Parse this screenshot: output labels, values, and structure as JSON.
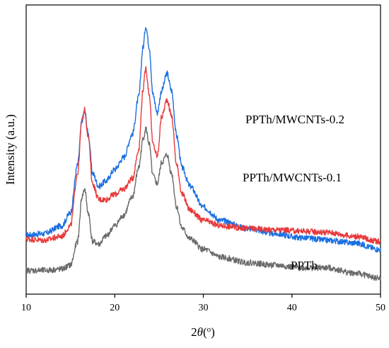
{
  "chart_data": {
    "type": "line",
    "title": "",
    "xlabel_prefix": "2",
    "xlabel_theta": "θ",
    "xlabel_open": "(",
    "xlabel_degree": "o",
    "xlabel_close": ")",
    "ylabel": "Intensity (a.u.)",
    "xlim": [
      10,
      50
    ],
    "xticks": [
      10,
      20,
      30,
      40,
      50
    ],
    "y_ticks_shown": false,
    "grid": false,
    "legend": "inline labels beside curves",
    "series": [
      {
        "name": "PPTh/MWCNTs-0.2",
        "color": "#1a6fe0",
        "x": [
          10,
          12,
          14,
          15,
          15.8,
          16.3,
          16.6,
          17.0,
          17.5,
          18.2,
          19,
          20,
          21,
          22,
          22.7,
          23.2,
          23.5,
          23.9,
          24.3,
          24.8,
          25.3,
          25.9,
          26.4,
          27,
          27.6,
          28.5,
          30,
          32,
          35,
          38,
          41,
          44,
          47,
          50
        ],
        "y": [
          0.45,
          0.46,
          0.52,
          0.62,
          0.98,
          1.32,
          1.4,
          1.22,
          0.92,
          0.82,
          0.86,
          0.95,
          1.04,
          1.22,
          1.5,
          1.88,
          2.04,
          1.88,
          1.52,
          1.38,
          1.55,
          1.68,
          1.55,
          1.2,
          0.96,
          0.82,
          0.66,
          0.56,
          0.5,
          0.46,
          0.43,
          0.41,
          0.39,
          0.34
        ]
      },
      {
        "name": "PPTh/MWCNTs-0.1",
        "color": "#e8393a",
        "x": [
          10,
          12,
          14,
          15,
          15.8,
          16.3,
          16.6,
          17.0,
          17.5,
          18.2,
          19,
          20,
          21,
          22,
          22.7,
          23.2,
          23.5,
          23.9,
          24.3,
          24.8,
          25.3,
          25.9,
          26.4,
          27,
          27.6,
          28.5,
          30,
          32,
          35,
          38,
          41,
          44,
          47,
          50
        ],
        "y": [
          0.42,
          0.41,
          0.44,
          0.52,
          0.92,
          1.32,
          1.4,
          1.2,
          0.84,
          0.72,
          0.72,
          0.76,
          0.8,
          0.88,
          1.1,
          1.56,
          1.72,
          1.52,
          1.14,
          1.05,
          1.35,
          1.48,
          1.36,
          0.98,
          0.76,
          0.64,
          0.56,
          0.52,
          0.5,
          0.49,
          0.48,
          0.47,
          0.44,
          0.4
        ]
      },
      {
        "name": "PPTh",
        "color": "#6b6b6b",
        "x": [
          10,
          12,
          14,
          15,
          15.8,
          16.3,
          16.6,
          17.0,
          17.5,
          18.2,
          19,
          20,
          21,
          22,
          22.7,
          23.2,
          23.5,
          23.9,
          24.3,
          24.8,
          25.3,
          25.9,
          26.4,
          27,
          27.6,
          28.5,
          30,
          32,
          35,
          38,
          41,
          44,
          47,
          50
        ],
        "y": [
          0.18,
          0.18,
          0.19,
          0.22,
          0.4,
          0.74,
          0.8,
          0.62,
          0.4,
          0.38,
          0.44,
          0.52,
          0.6,
          0.74,
          0.96,
          1.18,
          1.26,
          1.14,
          0.9,
          0.84,
          1.0,
          1.06,
          0.92,
          0.66,
          0.5,
          0.42,
          0.34,
          0.28,
          0.24,
          0.22,
          0.2,
          0.2,
          0.16,
          0.12
        ]
      }
    ]
  }
}
